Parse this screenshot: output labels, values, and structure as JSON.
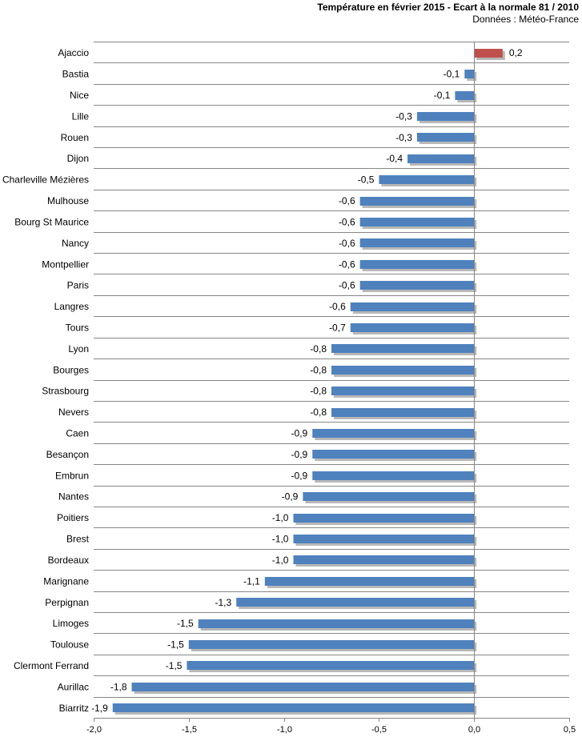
{
  "chart_data": {
    "type": "bar",
    "orientation": "horizontal",
    "title": "Température en février 2015 - Ecart à la normale 81 / 2010",
    "subtitle": "Données : Météo-France",
    "categories": [
      "Ajaccio",
      "Bastia",
      "Nice",
      "Lille",
      "Rouen",
      "Dijon",
      "Charleville Mézières",
      "Mulhouse",
      "Bourg St Maurice",
      "Nancy",
      "Montpellier",
      "Paris",
      "Langres",
      "Tours",
      "Lyon",
      "Bourges",
      "Strasbourg",
      "Nevers",
      "Caen",
      "Besançon",
      "Embrun",
      "Nantes",
      "Poitiers",
      "Brest",
      "Bordeaux",
      "Marignane",
      "Perpignan",
      "Limoges",
      "Toulouse",
      "Clermont Ferrand",
      "Aurillac",
      "Biarritz"
    ],
    "values": [
      0.15,
      -0.05,
      -0.1,
      -0.3,
      -0.3,
      -0.35,
      -0.5,
      -0.6,
      -0.6,
      -0.6,
      -0.6,
      -0.6,
      -0.65,
      -0.65,
      -0.75,
      -0.75,
      -0.75,
      -0.75,
      -0.85,
      -0.85,
      -0.85,
      -0.9,
      -0.95,
      -0.95,
      -0.95,
      -1.1,
      -1.25,
      -1.45,
      -1.5,
      -1.51,
      -1.8,
      -1.9
    ],
    "data_labels": [
      "0,2",
      "-0,1",
      "-0,1",
      "-0,3",
      "-0,3",
      "-0,4",
      "-0,5",
      "-0,6",
      "-0,6",
      "-0,6",
      "-0,6",
      "-0,6",
      "-0,6",
      "-0,7",
      "-0,8",
      "-0,8",
      "-0,8",
      "-0,8",
      "-0,9",
      "-0,9",
      "-0,9",
      "-0,9",
      "-1,0",
      "-1,0",
      "-1,0",
      "-1,1",
      "-1,3",
      "-1,5",
      "-1,5",
      "-1,5",
      "-1,8",
      "-1,9"
    ],
    "xlim": [
      -2.0,
      0.5
    ],
    "x_ticks": [
      "-2,0",
      "-1,5",
      "-1,0",
      "-0,5",
      "0,0",
      "0,5"
    ],
    "grid": true,
    "colors": {
      "negative": "#4F81BD",
      "positive": "#C0504D",
      "grid": "#868686",
      "shadow": "#B8B8B8"
    }
  }
}
